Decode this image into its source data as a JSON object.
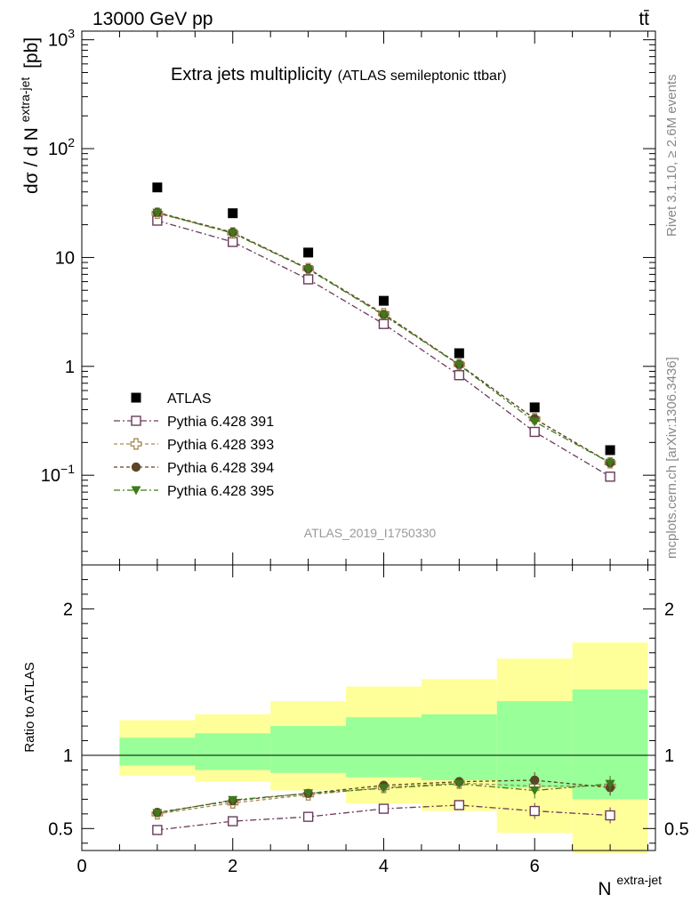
{
  "header": {
    "left": "13000 GeV pp",
    "right": "tt̄"
  },
  "side_labels": {
    "rivet": "Rivet 3.1.10, ≥ 2.6M events",
    "mcplots": "mcplots.cern.ch [arXiv:1306.3436]"
  },
  "chart_data": {
    "type": "scatter",
    "title": "Extra jets multiplicity",
    "subtitle": "(ATLAS semileptonic ttbar)",
    "analysis_label": "ATLAS_2019_I1750330",
    "xlabel_base": "N",
    "xlabel_sup": "extra-jet",
    "ylabel_main_base": "dσ / d N",
    "ylabel_main_sup": "extra-jet",
    "ylabel_main_unit": "[pb]",
    "ylabel_ratio": "Ratio to ATLAS",
    "xlim": [
      0,
      7.6
    ],
    "ylim_main": [
      0.015,
      1200
    ],
    "y_scale_main": "log",
    "ylim_ratio": [
      0.35,
      2.3
    ],
    "x_ticks": [
      0,
      2,
      4,
      6
    ],
    "y_ticks_main": [
      {
        "base": "10",
        "exp": "3"
      },
      {
        "base": "10",
        "exp": "2"
      },
      {
        "base": "10",
        "exp": ""
      },
      {
        "base": "1",
        "exp": ""
      },
      {
        "base": "10",
        "exp": "−1"
      }
    ],
    "y_ticks_ratio": [
      "0.5",
      "1",
      "2"
    ],
    "x": [
      1,
      2,
      3,
      4,
      5,
      6,
      7
    ],
    "bins": [
      [
        0.5,
        1.5
      ],
      [
        1.5,
        2.5
      ],
      [
        2.5,
        3.5
      ],
      [
        3.5,
        4.5
      ],
      [
        4.5,
        5.5
      ],
      [
        5.5,
        6.5
      ],
      [
        6.5,
        7.5
      ]
    ],
    "data_values": [
      44,
      25.5,
      11.1,
      4.0,
      1.32,
      0.42,
      0.17
    ],
    "uncertainty_inner": [
      [
        0.93,
        1.12
      ],
      [
        0.9,
        1.15
      ],
      [
        0.88,
        1.2
      ],
      [
        0.85,
        1.26
      ],
      [
        0.83,
        1.28
      ],
      [
        0.78,
        1.37
      ],
      [
        0.7,
        1.45
      ]
    ],
    "uncertainty_outer": [
      [
        0.86,
        1.24
      ],
      [
        0.82,
        1.28
      ],
      [
        0.76,
        1.37
      ],
      [
        0.67,
        1.47
      ],
      [
        0.62,
        1.52
      ],
      [
        0.47,
        1.66
      ],
      [
        0.33,
        1.77
      ]
    ],
    "series": [
      {
        "name": "ATLAS",
        "marker": "filled-square",
        "color": "#000000",
        "values": [
          44,
          25.5,
          11.1,
          4.0,
          1.32,
          0.42,
          0.17
        ]
      },
      {
        "name": "Pythia 6.428 391",
        "marker": "open-square",
        "color": "#6b3a5c",
        "values": [
          21.8,
          13.9,
          6.3,
          2.45,
          0.83,
          0.25,
          0.097
        ],
        "ratio": [
          0.49,
          0.55,
          0.58,
          0.635,
          0.66,
          0.62,
          0.59
        ]
      },
      {
        "name": "Pythia 6.428 393",
        "marker": "open-cross",
        "color": "#a68a52",
        "values": [
          25.5,
          16.8,
          7.9,
          3.05,
          1.04,
          0.33,
          0.13
        ],
        "ratio": [
          0.6,
          0.675,
          0.73,
          0.78,
          0.81,
          0.79,
          0.79
        ]
      },
      {
        "name": "Pythia 6.428 394",
        "marker": "filled-circle",
        "color": "#5c4427",
        "values": [
          26.0,
          17.0,
          7.9,
          3.0,
          1.04,
          0.33,
          0.13
        ],
        "ratio": [
          0.61,
          0.69,
          0.74,
          0.795,
          0.82,
          0.83,
          0.78
        ]
      },
      {
        "name": "Pythia 6.428 395",
        "marker": "filled-triangle-down",
        "color": "#3f7a1a",
        "values": [
          25.8,
          16.7,
          7.8,
          2.95,
          1.03,
          0.31,
          0.13
        ],
        "ratio": [
          0.605,
          0.695,
          0.74,
          0.775,
          0.805,
          0.76,
          0.805
        ]
      }
    ],
    "colors": {
      "band_outer": "#ffff99",
      "band_inner": "#99ff99"
    }
  }
}
